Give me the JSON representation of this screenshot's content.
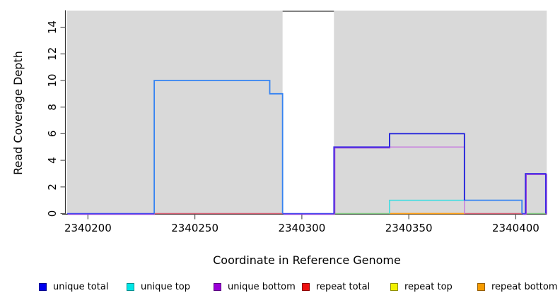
{
  "figure": {
    "background": "#ffffff"
  },
  "legend": {
    "items": [
      {
        "label": "unique total",
        "color": "#0000ee",
        "border": "#000090"
      },
      {
        "label": "unique top",
        "color": "#00e6e6",
        "border": "#009090"
      },
      {
        "label": "unique bottom",
        "color": "#9a00d8",
        "border": "#5a0080"
      },
      {
        "label": "repeat total",
        "color": "#ee1111",
        "border": "#900000"
      },
      {
        "label": "repeat top",
        "color": "#f2f200",
        "border": "#909000"
      },
      {
        "label": "repeat bottom",
        "color": "#f59b00",
        "border": "#965e00"
      }
    ]
  },
  "chart_data": {
    "type": "line",
    "subtype": "step-coverage-plot",
    "title": "",
    "xlabel": "Coordinate in Reference Genome",
    "ylabel": "Read Coverage Depth",
    "x_ticks": [
      "2340200",
      "2340250",
      "2340300",
      "2340350",
      "2340400"
    ],
    "x_tick_values": [
      2340200,
      2340250,
      2340300,
      2340350,
      2340400
    ],
    "y_ticks": [
      "0",
      "2",
      "4",
      "6",
      "8",
      "10",
      "12",
      "14"
    ],
    "y_tick_values": [
      0,
      2,
      4,
      6,
      8,
      10,
      12,
      14
    ],
    "x_domain": [
      2340190.3,
      2340414.5
    ],
    "y_domain": [
      0,
      15.25
    ],
    "grid": "off",
    "legend_position": "bottom",
    "plot_bg": "#d9d9d9",
    "covered_regions_x": [
      [
        2340190.3,
        2340291
      ],
      [
        2340315,
        2340414.5
      ]
    ],
    "uncovered_gap_x": [
      2340291,
      2340315
    ],
    "series": [
      {
        "name": "unique total",
        "color_key": "blue",
        "steps": [
          {
            "x": [
              2340190,
              2340231
            ],
            "y": 0
          },
          {
            "x": [
              2340231,
              2340285
            ],
            "y": 10
          },
          {
            "x": [
              2340285,
              2340291
            ],
            "y": 9
          },
          {
            "x": [
              2340291,
              2340315
            ],
            "y": 0
          },
          {
            "x": [
              2340315,
              2340341
            ],
            "y": 5
          },
          {
            "x": [
              2340341,
              2340376
            ],
            "y": 6
          },
          {
            "x": [
              2340376,
              2340403
            ],
            "y": 1
          },
          {
            "x": [
              2340403,
              2340405
            ],
            "y": 0
          },
          {
            "x": [
              2340405,
              2340414
            ],
            "y": 3
          }
        ]
      },
      {
        "name": "unique top",
        "color_key": "cyan",
        "steps": [
          {
            "x": [
              2340341,
              2340376
            ],
            "y": 1
          }
        ]
      },
      {
        "name": "unique bottom",
        "color_key": "purple",
        "steps": [
          {
            "x": [
              2340190,
              2340315
            ],
            "y": 0
          },
          {
            "x": [
              2340315,
              2340376
            ],
            "y": 5
          },
          {
            "x": [
              2340376,
              2340405
            ],
            "y": 0
          },
          {
            "x": [
              2340405,
              2340414
            ],
            "y": 3
          }
        ]
      },
      {
        "name": "repeat total",
        "color_key": "red",
        "steps": [
          {
            "x": [
              2340231,
              2340291
            ],
            "y": 0
          },
          {
            "x": [
              2340376,
              2340403
            ],
            "y": 0
          }
        ]
      },
      {
        "name": "repeat top",
        "color_key": "yellow",
        "steps": []
      },
      {
        "name": "repeat bottom",
        "color_key": "orange",
        "steps": [
          {
            "x": [
              2340341,
              2340376
            ],
            "y": 0
          }
        ]
      },
      {
        "name": "unlabeled green baseline",
        "color_key": "green",
        "steps": [
          {
            "x": [
              2340315,
              2340341
            ],
            "y": 0
          },
          {
            "x": [
              2340405,
              2340414
            ],
            "y": 0
          }
        ]
      }
    ],
    "gap_top_marker": {
      "x": [
        2340291,
        2340315
      ],
      "y": 15.2,
      "color": "#848484"
    },
    "render_lines": [
      {
        "name": "baseline-green-left",
        "color": "#7cc47c",
        "width": 1.4,
        "points": [
          [
            2340315,
            0
          ],
          [
            2340341,
            0
          ]
        ]
      },
      {
        "name": "baseline-green-right",
        "color": "#7cc47c",
        "width": 1.4,
        "points": [
          [
            2340404.5,
            0
          ],
          [
            2340414.3,
            0
          ]
        ]
      },
      {
        "name": "baseline-orange-tip",
        "color": "#f08030",
        "width": 1.6,
        "points": [
          [
            2340414,
            0
          ],
          [
            2340414.6,
            0
          ]
        ]
      },
      {
        "name": "baseline-red-left",
        "color": "#d25a6e",
        "width": 1.5,
        "points": [
          [
            2340231,
            0
          ],
          [
            2340291,
            0
          ]
        ]
      },
      {
        "name": "baseline-red-right",
        "color": "#d25a6e",
        "width": 1.5,
        "points": [
          [
            2340376,
            0
          ],
          [
            2340402.9,
            0
          ]
        ]
      },
      {
        "name": "baseline-orange",
        "color": "#ff9d12",
        "width": 1.8,
        "points": [
          [
            2340341,
            0
          ],
          [
            2340376,
            0
          ]
        ]
      },
      {
        "name": "unique-top-step",
        "color": "#35dde2",
        "width": 1.5,
        "points": [
          [
            2340341,
            0
          ],
          [
            2340341,
            1
          ],
          [
            2340376,
            1
          ]
        ]
      },
      {
        "name": "unique-bottom-step",
        "color": "#c77fe0",
        "width": 1.5,
        "points": [
          [
            2340341,
            5
          ],
          [
            2340376,
            5
          ],
          [
            2340376,
            0
          ]
        ]
      },
      {
        "name": "total-box-10",
        "color": "#3583f2",
        "width": 1.8,
        "points": [
          [
            2340231,
            0
          ],
          [
            2340231,
            10
          ],
          [
            2340285,
            10
          ],
          [
            2340285,
            9
          ],
          [
            2340291,
            9
          ],
          [
            2340291,
            0
          ]
        ]
      },
      {
        "name": "total-seg-1",
        "color": "#3583f2",
        "width": 1.8,
        "points": [
          [
            2340376,
            1
          ],
          [
            2340402.9,
            1
          ],
          [
            2340402.9,
            0
          ]
        ]
      },
      {
        "name": "total-box-6",
        "color": "#1c1cdc",
        "width": 1.8,
        "points": [
          [
            2340341,
            5
          ],
          [
            2340341,
            6
          ],
          [
            2340376,
            6
          ],
          [
            2340376,
            1
          ]
        ]
      },
      {
        "name": "baseline-left",
        "color": "#4343ee",
        "shadow": "#9a44d8",
        "width": 1.4,
        "points": [
          [
            2340190.3,
            0
          ],
          [
            2340231,
            0
          ]
        ]
      },
      {
        "name": "baseline-gap",
        "color": "#4343ee",
        "shadow": "#9a44d8",
        "width": 1.4,
        "points": [
          [
            2340291,
            0
          ],
          [
            2340315,
            0
          ]
        ]
      },
      {
        "name": "rise-5",
        "color": "#3a2ae4",
        "shadow": "#9a44d8",
        "width": 1.7,
        "points": [
          [
            2340315,
            0
          ],
          [
            2340315,
            5
          ],
          [
            2340341,
            5
          ]
        ]
      },
      {
        "name": "baseline-mid",
        "color": "#4343ee",
        "shadow": "#9a44d8",
        "width": 1.4,
        "points": [
          [
            2340402.9,
            0
          ],
          [
            2340404.5,
            0
          ]
        ]
      },
      {
        "name": "box-3",
        "color": "#3a2ae4",
        "shadow": "#9a44d8",
        "width": 1.7,
        "points": [
          [
            2340404.5,
            0
          ],
          [
            2340404.5,
            3
          ],
          [
            2340414,
            3
          ],
          [
            2340414,
            0
          ]
        ]
      },
      {
        "name": "gap-top-marker",
        "color": "#848484",
        "width": 2.2,
        "points": [
          [
            2340291,
            15.2
          ],
          [
            2340315,
            15.2
          ]
        ]
      }
    ]
  }
}
